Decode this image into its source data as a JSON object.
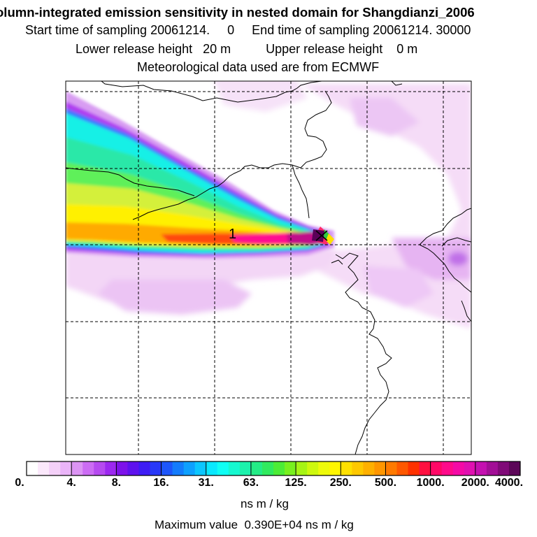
{
  "header": {
    "title": "olumn-integrated emission sensitivity in nested domain for Shangdianzi_2006",
    "sampling_line": "Start time of sampling 20061214.     0     End time of sampling 20061214. 30000",
    "release_line": "Lower release height   20 m          Upper release height    0 m",
    "met_line": "Meteorological data used are from ECMWF"
  },
  "map": {
    "release_marker_label": "1",
    "plume_colors": {
      "magenta_light": "#f3d8f6",
      "violet": "#d89cf2",
      "purple": "#b03cf0",
      "blue": "#3a78ff",
      "cyan": "#10f0e6",
      "teal": "#2be8a8",
      "green": "#5ef05a",
      "yellow_green": "#d4f03a",
      "yellow": "#fff000",
      "orange": "#ffaa00",
      "red": "#ff2020",
      "pink": "#ff0a90",
      "deep_magenta": "#b0007a"
    }
  },
  "colorbar": {
    "tick_labels": [
      "0.",
      "4.",
      "8.",
      "16.",
      "31.",
      "63.",
      "125.",
      "250.",
      "500.",
      "1000.",
      "2000.",
      "4000."
    ],
    "colors": [
      "#ffffff",
      "#fbe8fb",
      "#f4d0f8",
      "#eab4f8",
      "#dc94f4",
      "#cc6cf4",
      "#b64af0",
      "#9c28f0",
      "#7d12ea",
      "#5e12ee",
      "#3e1cf4",
      "#2838f8",
      "#1e56fa",
      "#147cfc",
      "#0ea0fe",
      "#0cc6fe",
      "#0ae8fe",
      "#10fef4",
      "#16f8d0",
      "#1cf2ac",
      "#24ec86",
      "#30ea5e",
      "#4cec36",
      "#78f01e",
      "#a6f414",
      "#cef80e",
      "#eefa0a",
      "#fff500",
      "#ffe000",
      "#ffc800",
      "#ffb000",
      "#ff9600",
      "#ff7a00",
      "#ff5800",
      "#ff3200",
      "#ff1040",
      "#ff0866",
      "#ff0a8a",
      "#f40aa6",
      "#e010b0",
      "#c410b0",
      "#a20e96",
      "#800a78",
      "#5c0658"
    ],
    "unit": "ns m / kg"
  },
  "footer": {
    "max_value": "Maximum value  0.390E+04 ns m / kg"
  }
}
